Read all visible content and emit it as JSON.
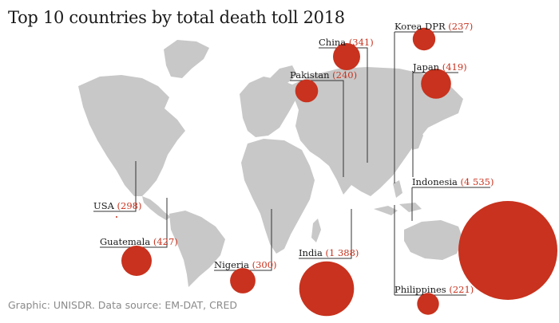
{
  "title": "Top 10 countries by total death toll 2018",
  "source": "Graphic: UNISDR. Data source: EM-DAT, CRED",
  "colors": {
    "bubble": "#c8321e",
    "land": "#c8c8c8",
    "text": "#1a1a1a",
    "value": "#c8321e",
    "leader": "#333333"
  },
  "chart_data": {
    "type": "scatter",
    "encoding": "bubble area proportional to death toll, placed on a world map",
    "title": "Top 10 countries by total death toll 2018",
    "series": [
      {
        "country": "China",
        "value": 341,
        "value_label": "341"
      },
      {
        "country": "Korea DPR",
        "value": 237,
        "value_label": "237"
      },
      {
        "country": "Pakistan",
        "value": 240,
        "value_label": "240"
      },
      {
        "country": "Japan",
        "value": 419,
        "value_label": "419"
      },
      {
        "country": "Indonesia",
        "value": 4535,
        "value_label": "4 535"
      },
      {
        "country": "USA",
        "value": 298,
        "value_label": "298"
      },
      {
        "country": "Guatemala",
        "value": 427,
        "value_label": "427"
      },
      {
        "country": "Nigeria",
        "value": 300,
        "value_label": "300"
      },
      {
        "country": "India",
        "value": 1388,
        "value_label": "1 388"
      },
      {
        "country": "Philippines",
        "value": 221,
        "value_label": "221"
      }
    ]
  }
}
